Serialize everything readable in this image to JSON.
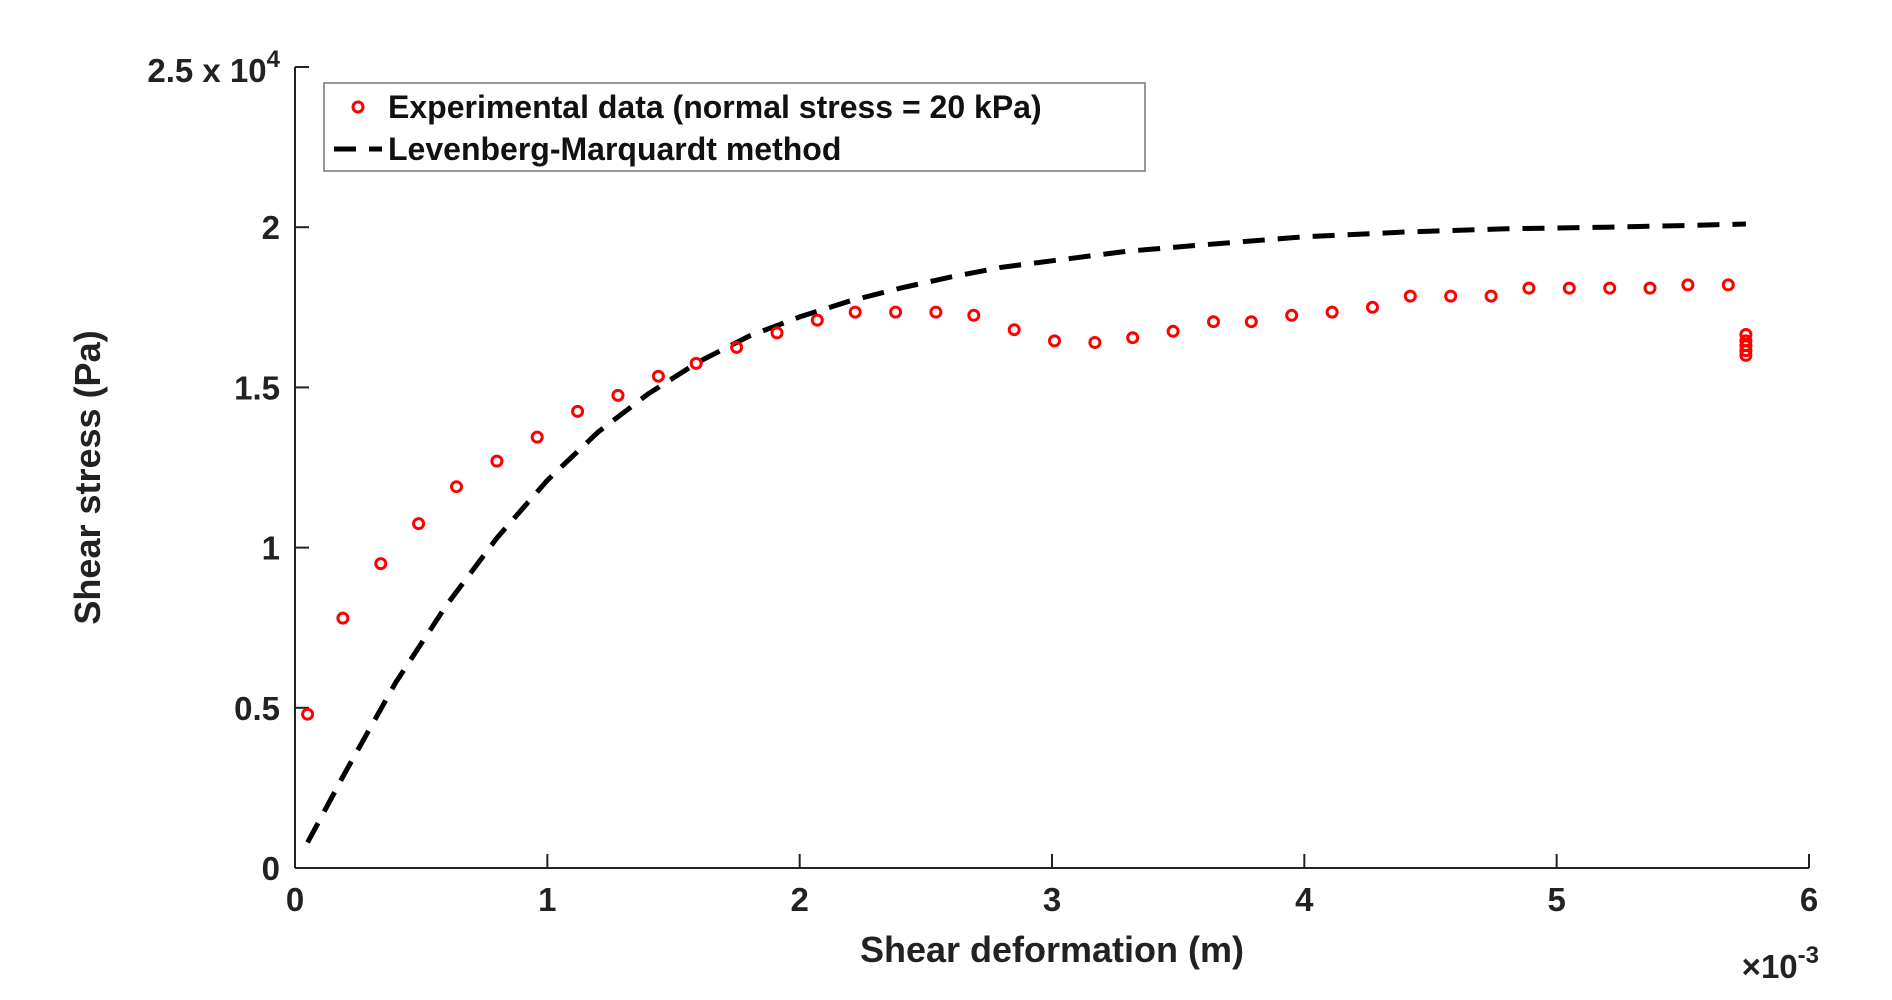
{
  "chart_data": {
    "type": "scatter",
    "title": "",
    "xlabel": "Shear deformation (m)",
    "ylabel": "Shear stress (Pa)",
    "x_multiplier_label": "×10",
    "x_multiplier_exponent": "-3",
    "y_multiplier_label": "2.5 x 10",
    "y_multiplier_exponent": "4",
    "xlim": [
      0,
      6
    ],
    "ylim": [
      0,
      2.5
    ],
    "x_ticks": [
      "0",
      "1",
      "2",
      "3",
      "4",
      "5",
      "6"
    ],
    "y_ticks": [
      "0",
      "0.5",
      "1",
      "1.5",
      "2"
    ],
    "grid": false,
    "legend_position": "top-left",
    "colors": {
      "experimental": "#ff0000",
      "fit": "#000000",
      "axis": "#222222"
    },
    "series": [
      {
        "name": "Experimental data (normal stress = 20 kPa)",
        "style": "markers",
        "x": [
          0.05,
          0.19,
          0.34,
          0.49,
          0.64,
          0.8,
          0.96,
          1.12,
          1.28,
          1.44,
          1.59,
          1.75,
          1.91,
          2.07,
          2.22,
          2.38,
          2.54,
          2.69,
          2.85,
          3.01,
          3.17,
          3.32,
          3.48,
          3.64,
          3.79,
          3.95,
          4.11,
          4.27,
          4.42,
          4.58,
          4.74,
          4.89,
          5.05,
          5.21,
          5.37,
          5.52,
          5.68,
          5.75,
          5.75,
          5.75,
          5.75,
          5.75
        ],
        "y": [
          0.48,
          0.78,
          0.95,
          1.075,
          1.19,
          1.27,
          1.345,
          1.425,
          1.475,
          1.535,
          1.575,
          1.625,
          1.67,
          1.71,
          1.735,
          1.735,
          1.735,
          1.725,
          1.68,
          1.645,
          1.64,
          1.655,
          1.675,
          1.705,
          1.705,
          1.725,
          1.735,
          1.75,
          1.785,
          1.785,
          1.785,
          1.81,
          1.81,
          1.81,
          1.81,
          1.82,
          1.82,
          1.665,
          1.645,
          1.63,
          1.615,
          1.6
        ]
      },
      {
        "name": "Levenberg-Marquardt method",
        "style": "dashed-line",
        "x": [
          0.05,
          0.2,
          0.4,
          0.6,
          0.8,
          1.0,
          1.2,
          1.4,
          1.6,
          1.8,
          2.0,
          2.2,
          2.4,
          2.6,
          2.8,
          3.0,
          3.3,
          3.6,
          4.0,
          4.4,
          4.8,
          5.2,
          5.5,
          5.75
        ],
        "y": [
          0.08,
          0.3,
          0.58,
          0.82,
          1.03,
          1.21,
          1.36,
          1.48,
          1.58,
          1.66,
          1.72,
          1.77,
          1.81,
          1.845,
          1.875,
          1.895,
          1.925,
          1.945,
          1.97,
          1.985,
          1.995,
          2.0,
          2.005,
          2.01
        ]
      }
    ]
  }
}
